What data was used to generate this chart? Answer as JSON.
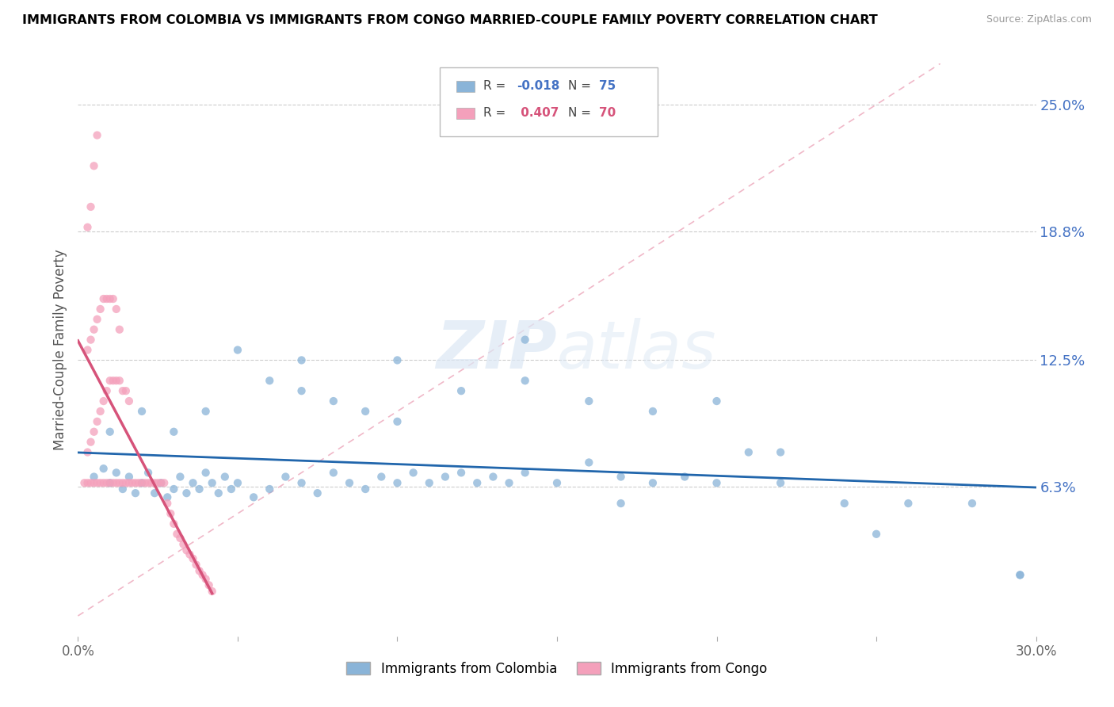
{
  "title": "IMMIGRANTS FROM COLOMBIA VS IMMIGRANTS FROM CONGO MARRIED-COUPLE FAMILY POVERTY CORRELATION CHART",
  "source": "Source: ZipAtlas.com",
  "ylabel": "Married-Couple Family Poverty",
  "legend_label_blue": "Immigrants from Colombia",
  "legend_label_pink": "Immigrants from Congo",
  "color_blue": "#8ab4d8",
  "color_pink": "#f4a0bb",
  "color_trendline_blue": "#2166ac",
  "color_trendline_pink": "#d6537a",
  "color_diagonal": "#f0c0c8",
  "xlim": [
    0.0,
    0.3
  ],
  "ylim": [
    -0.01,
    0.27
  ],
  "ytick_positions": [
    0.063,
    0.125,
    0.188,
    0.25
  ],
  "ytick_labels": [
    "6.3%",
    "12.5%",
    "18.8%",
    "25.0%"
  ],
  "xtick_positions": [
    0.0,
    0.05,
    0.1,
    0.15,
    0.2,
    0.25,
    0.3
  ],
  "xtick_labels": [
    "0.0%",
    "",
    "",
    "",
    "",
    "",
    "30.0%"
  ],
  "watermark_text": "ZIPatlas",
  "legend_R_blue_val": "-0.018",
  "legend_N_blue_val": "75",
  "legend_R_pink_val": "0.407",
  "legend_N_pink_val": "70",
  "blue_x": [
    0.005,
    0.008,
    0.01,
    0.012,
    0.014,
    0.016,
    0.018,
    0.02,
    0.022,
    0.024,
    0.026,
    0.028,
    0.03,
    0.032,
    0.034,
    0.036,
    0.038,
    0.04,
    0.042,
    0.044,
    0.046,
    0.048,
    0.05,
    0.055,
    0.06,
    0.065,
    0.07,
    0.075,
    0.08,
    0.085,
    0.09,
    0.095,
    0.1,
    0.105,
    0.11,
    0.115,
    0.12,
    0.125,
    0.13,
    0.135,
    0.14,
    0.15,
    0.16,
    0.17,
    0.18,
    0.19,
    0.2,
    0.21,
    0.22,
    0.24,
    0.26,
    0.28,
    0.295,
    0.01,
    0.02,
    0.03,
    0.04,
    0.05,
    0.06,
    0.07,
    0.08,
    0.09,
    0.1,
    0.12,
    0.14,
    0.16,
    0.18,
    0.2,
    0.22,
    0.25,
    0.07,
    0.1,
    0.14,
    0.17,
    0.295
  ],
  "blue_y": [
    0.068,
    0.072,
    0.065,
    0.07,
    0.062,
    0.068,
    0.06,
    0.065,
    0.07,
    0.06,
    0.065,
    0.058,
    0.062,
    0.068,
    0.06,
    0.065,
    0.062,
    0.07,
    0.065,
    0.06,
    0.068,
    0.062,
    0.065,
    0.058,
    0.062,
    0.068,
    0.065,
    0.06,
    0.07,
    0.065,
    0.062,
    0.068,
    0.065,
    0.07,
    0.065,
    0.068,
    0.07,
    0.065,
    0.068,
    0.065,
    0.07,
    0.065,
    0.075,
    0.068,
    0.065,
    0.068,
    0.065,
    0.08,
    0.065,
    0.055,
    0.055,
    0.055,
    0.02,
    0.09,
    0.1,
    0.09,
    0.1,
    0.13,
    0.115,
    0.11,
    0.105,
    0.1,
    0.095,
    0.11,
    0.115,
    0.105,
    0.1,
    0.105,
    0.08,
    0.04,
    0.125,
    0.125,
    0.135,
    0.055,
    0.02
  ],
  "pink_x": [
    0.002,
    0.003,
    0.004,
    0.005,
    0.006,
    0.007,
    0.008,
    0.009,
    0.01,
    0.011,
    0.012,
    0.013,
    0.014,
    0.015,
    0.016,
    0.017,
    0.018,
    0.019,
    0.02,
    0.021,
    0.022,
    0.023,
    0.024,
    0.025,
    0.026,
    0.027,
    0.028,
    0.029,
    0.03,
    0.031,
    0.032,
    0.033,
    0.034,
    0.035,
    0.036,
    0.037,
    0.038,
    0.039,
    0.04,
    0.041,
    0.042,
    0.003,
    0.004,
    0.005,
    0.006,
    0.007,
    0.008,
    0.009,
    0.01,
    0.011,
    0.012,
    0.013,
    0.014,
    0.015,
    0.016,
    0.003,
    0.004,
    0.005,
    0.006,
    0.007,
    0.008,
    0.009,
    0.01,
    0.011,
    0.012,
    0.013,
    0.003,
    0.004,
    0.005,
    0.006
  ],
  "pink_y": [
    0.065,
    0.065,
    0.065,
    0.065,
    0.065,
    0.065,
    0.065,
    0.065,
    0.065,
    0.065,
    0.065,
    0.065,
    0.065,
    0.065,
    0.065,
    0.065,
    0.065,
    0.065,
    0.065,
    0.065,
    0.065,
    0.065,
    0.065,
    0.065,
    0.065,
    0.065,
    0.055,
    0.05,
    0.045,
    0.04,
    0.038,
    0.035,
    0.032,
    0.03,
    0.028,
    0.025,
    0.022,
    0.02,
    0.018,
    0.015,
    0.012,
    0.08,
    0.085,
    0.09,
    0.095,
    0.1,
    0.105,
    0.11,
    0.115,
    0.115,
    0.115,
    0.115,
    0.11,
    0.11,
    0.105,
    0.13,
    0.135,
    0.14,
    0.145,
    0.15,
    0.155,
    0.155,
    0.155,
    0.155,
    0.15,
    0.14,
    0.19,
    0.2,
    0.22,
    0.235
  ]
}
